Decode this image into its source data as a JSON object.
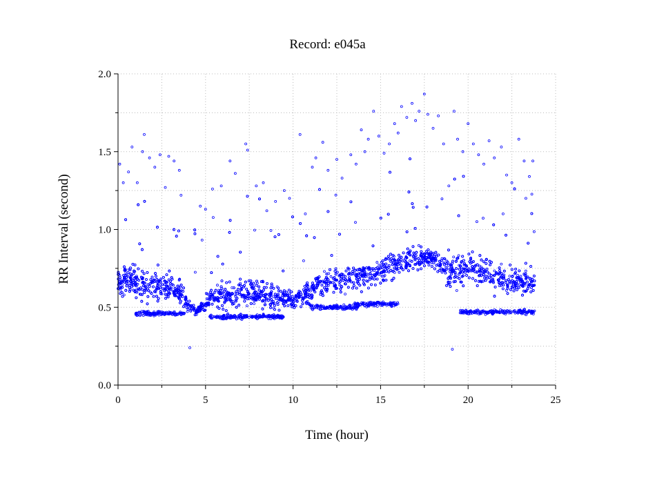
{
  "chart_data": {
    "type": "scatter",
    "title": "Record:  e045a",
    "xlabel": "Time (hour)",
    "ylabel": "RR Interval (second)",
    "xlim": [
      0,
      25
    ],
    "ylim": [
      0.0,
      2.0
    ],
    "xticks": [
      0,
      5,
      10,
      15,
      20,
      25
    ],
    "xtick_labels": [
      "0",
      "5",
      "10",
      "15",
      "20",
      "25"
    ],
    "yticks": [
      0.0,
      0.5,
      1.0,
      1.5,
      2.0
    ],
    "ytick_labels": [
      "0.0",
      "0.5",
      "1.0",
      "1.5",
      "2.0"
    ],
    "grid": true,
    "marker_color": "#0000ff",
    "series": [
      {
        "marker": "open-circle",
        "trend": {
          "t": [
            0,
            0.5,
            1,
            2,
            3,
            3.8,
            4,
            4.5,
            5,
            5.5,
            6,
            7,
            8,
            9,
            10,
            10.5,
            11,
            11.5,
            12,
            13,
            14,
            15,
            16,
            17,
            18,
            18.5,
            19,
            20,
            21,
            22,
            23,
            23.8
          ],
          "median": [
            0.66,
            0.68,
            0.67,
            0.64,
            0.62,
            0.58,
            0.5,
            0.48,
            0.53,
            0.58,
            0.57,
            0.6,
            0.59,
            0.57,
            0.55,
            0.57,
            0.6,
            0.64,
            0.66,
            0.68,
            0.7,
            0.74,
            0.78,
            0.82,
            0.82,
            0.76,
            0.74,
            0.74,
            0.72,
            0.68,
            0.66,
            0.66
          ],
          "spread": [
            0.1,
            0.12,
            0.14,
            0.14,
            0.12,
            0.1,
            0.05,
            0.04,
            0.07,
            0.1,
            0.11,
            0.12,
            0.12,
            0.11,
            0.09,
            0.1,
            0.1,
            0.11,
            0.11,
            0.11,
            0.12,
            0.12,
            0.11,
            0.1,
            0.08,
            0.12,
            0.14,
            0.14,
            0.12,
            0.12,
            0.12,
            0.12
          ]
        },
        "lower_band": [
          {
            "t": [
              1.0,
              3.8
            ],
            "y": 0.46
          },
          {
            "t": [
              5.2,
              9.5
            ],
            "y": 0.44
          },
          {
            "t": [
              11.0,
              13.8
            ],
            "y": 0.5
          },
          {
            "t": [
              13.5,
              16.0
            ],
            "y": 0.52
          },
          {
            "t": [
              19.5,
              23.8
            ],
            "y": 0.47
          }
        ],
        "outliers": [
          [
            0.1,
            1.42
          ],
          [
            0.3,
            1.3
          ],
          [
            0.6,
            1.37
          ],
          [
            0.8,
            1.53
          ],
          [
            1.1,
            1.3
          ],
          [
            1.4,
            1.5
          ],
          [
            1.5,
            1.61
          ],
          [
            1.8,
            1.46
          ],
          [
            2.1,
            1.4
          ],
          [
            2.4,
            1.48
          ],
          [
            2.7,
            1.27
          ],
          [
            2.9,
            1.47
          ],
          [
            3.2,
            1.44
          ],
          [
            3.5,
            1.38
          ],
          [
            3.6,
            1.22
          ],
          [
            4.1,
            0.24
          ],
          [
            4.7,
            1.15
          ],
          [
            5.0,
            1.13
          ],
          [
            5.4,
            1.26
          ],
          [
            5.9,
            1.28
          ],
          [
            6.4,
            1.44
          ],
          [
            6.7,
            1.36
          ],
          [
            7.3,
            1.55
          ],
          [
            7.4,
            1.51
          ],
          [
            7.9,
            1.28
          ],
          [
            8.3,
            1.3
          ],
          [
            8.5,
            1.12
          ],
          [
            9.0,
            1.18
          ],
          [
            9.5,
            1.25
          ],
          [
            9.8,
            1.2
          ],
          [
            10.4,
            1.61
          ],
          [
            10.7,
            1.1
          ],
          [
            11.1,
            1.4
          ],
          [
            11.3,
            1.46
          ],
          [
            11.7,
            1.56
          ],
          [
            12.0,
            1.38
          ],
          [
            12.5,
            1.45
          ],
          [
            12.8,
            1.33
          ],
          [
            13.3,
            1.48
          ],
          [
            13.6,
            1.42
          ],
          [
            13.9,
            1.64
          ],
          [
            14.1,
            1.5
          ],
          [
            14.3,
            1.58
          ],
          [
            14.6,
            1.76
          ],
          [
            14.9,
            1.6
          ],
          [
            15.2,
            1.49
          ],
          [
            15.5,
            1.55
          ],
          [
            15.8,
            1.68
          ],
          [
            16.0,
            1.62
          ],
          [
            16.2,
            1.79
          ],
          [
            16.5,
            1.72
          ],
          [
            16.8,
            1.81
          ],
          [
            17.0,
            1.7
          ],
          [
            17.2,
            1.76
          ],
          [
            17.5,
            1.87
          ],
          [
            17.7,
            1.74
          ],
          [
            18.0,
            1.65
          ],
          [
            18.3,
            1.73
          ],
          [
            18.6,
            1.55
          ],
          [
            18.9,
            1.28
          ],
          [
            19.2,
            1.76
          ],
          [
            19.4,
            1.58
          ],
          [
            19.7,
            1.5
          ],
          [
            20.0,
            1.68
          ],
          [
            20.3,
            1.55
          ],
          [
            20.6,
            1.48
          ],
          [
            20.9,
            1.42
          ],
          [
            21.2,
            1.57
          ],
          [
            21.5,
            1.46
          ],
          [
            21.9,
            1.53
          ],
          [
            22.2,
            1.35
          ],
          [
            22.5,
            1.3
          ],
          [
            22.9,
            1.58
          ],
          [
            23.2,
            1.44
          ],
          [
            23.5,
            1.34
          ],
          [
            23.7,
            1.44
          ],
          [
            19.1,
            0.23
          ],
          [
            23.3,
            1.2
          ],
          [
            22.0,
            1.1
          ],
          [
            20.5,
            1.05
          ]
        ]
      }
    ]
  }
}
